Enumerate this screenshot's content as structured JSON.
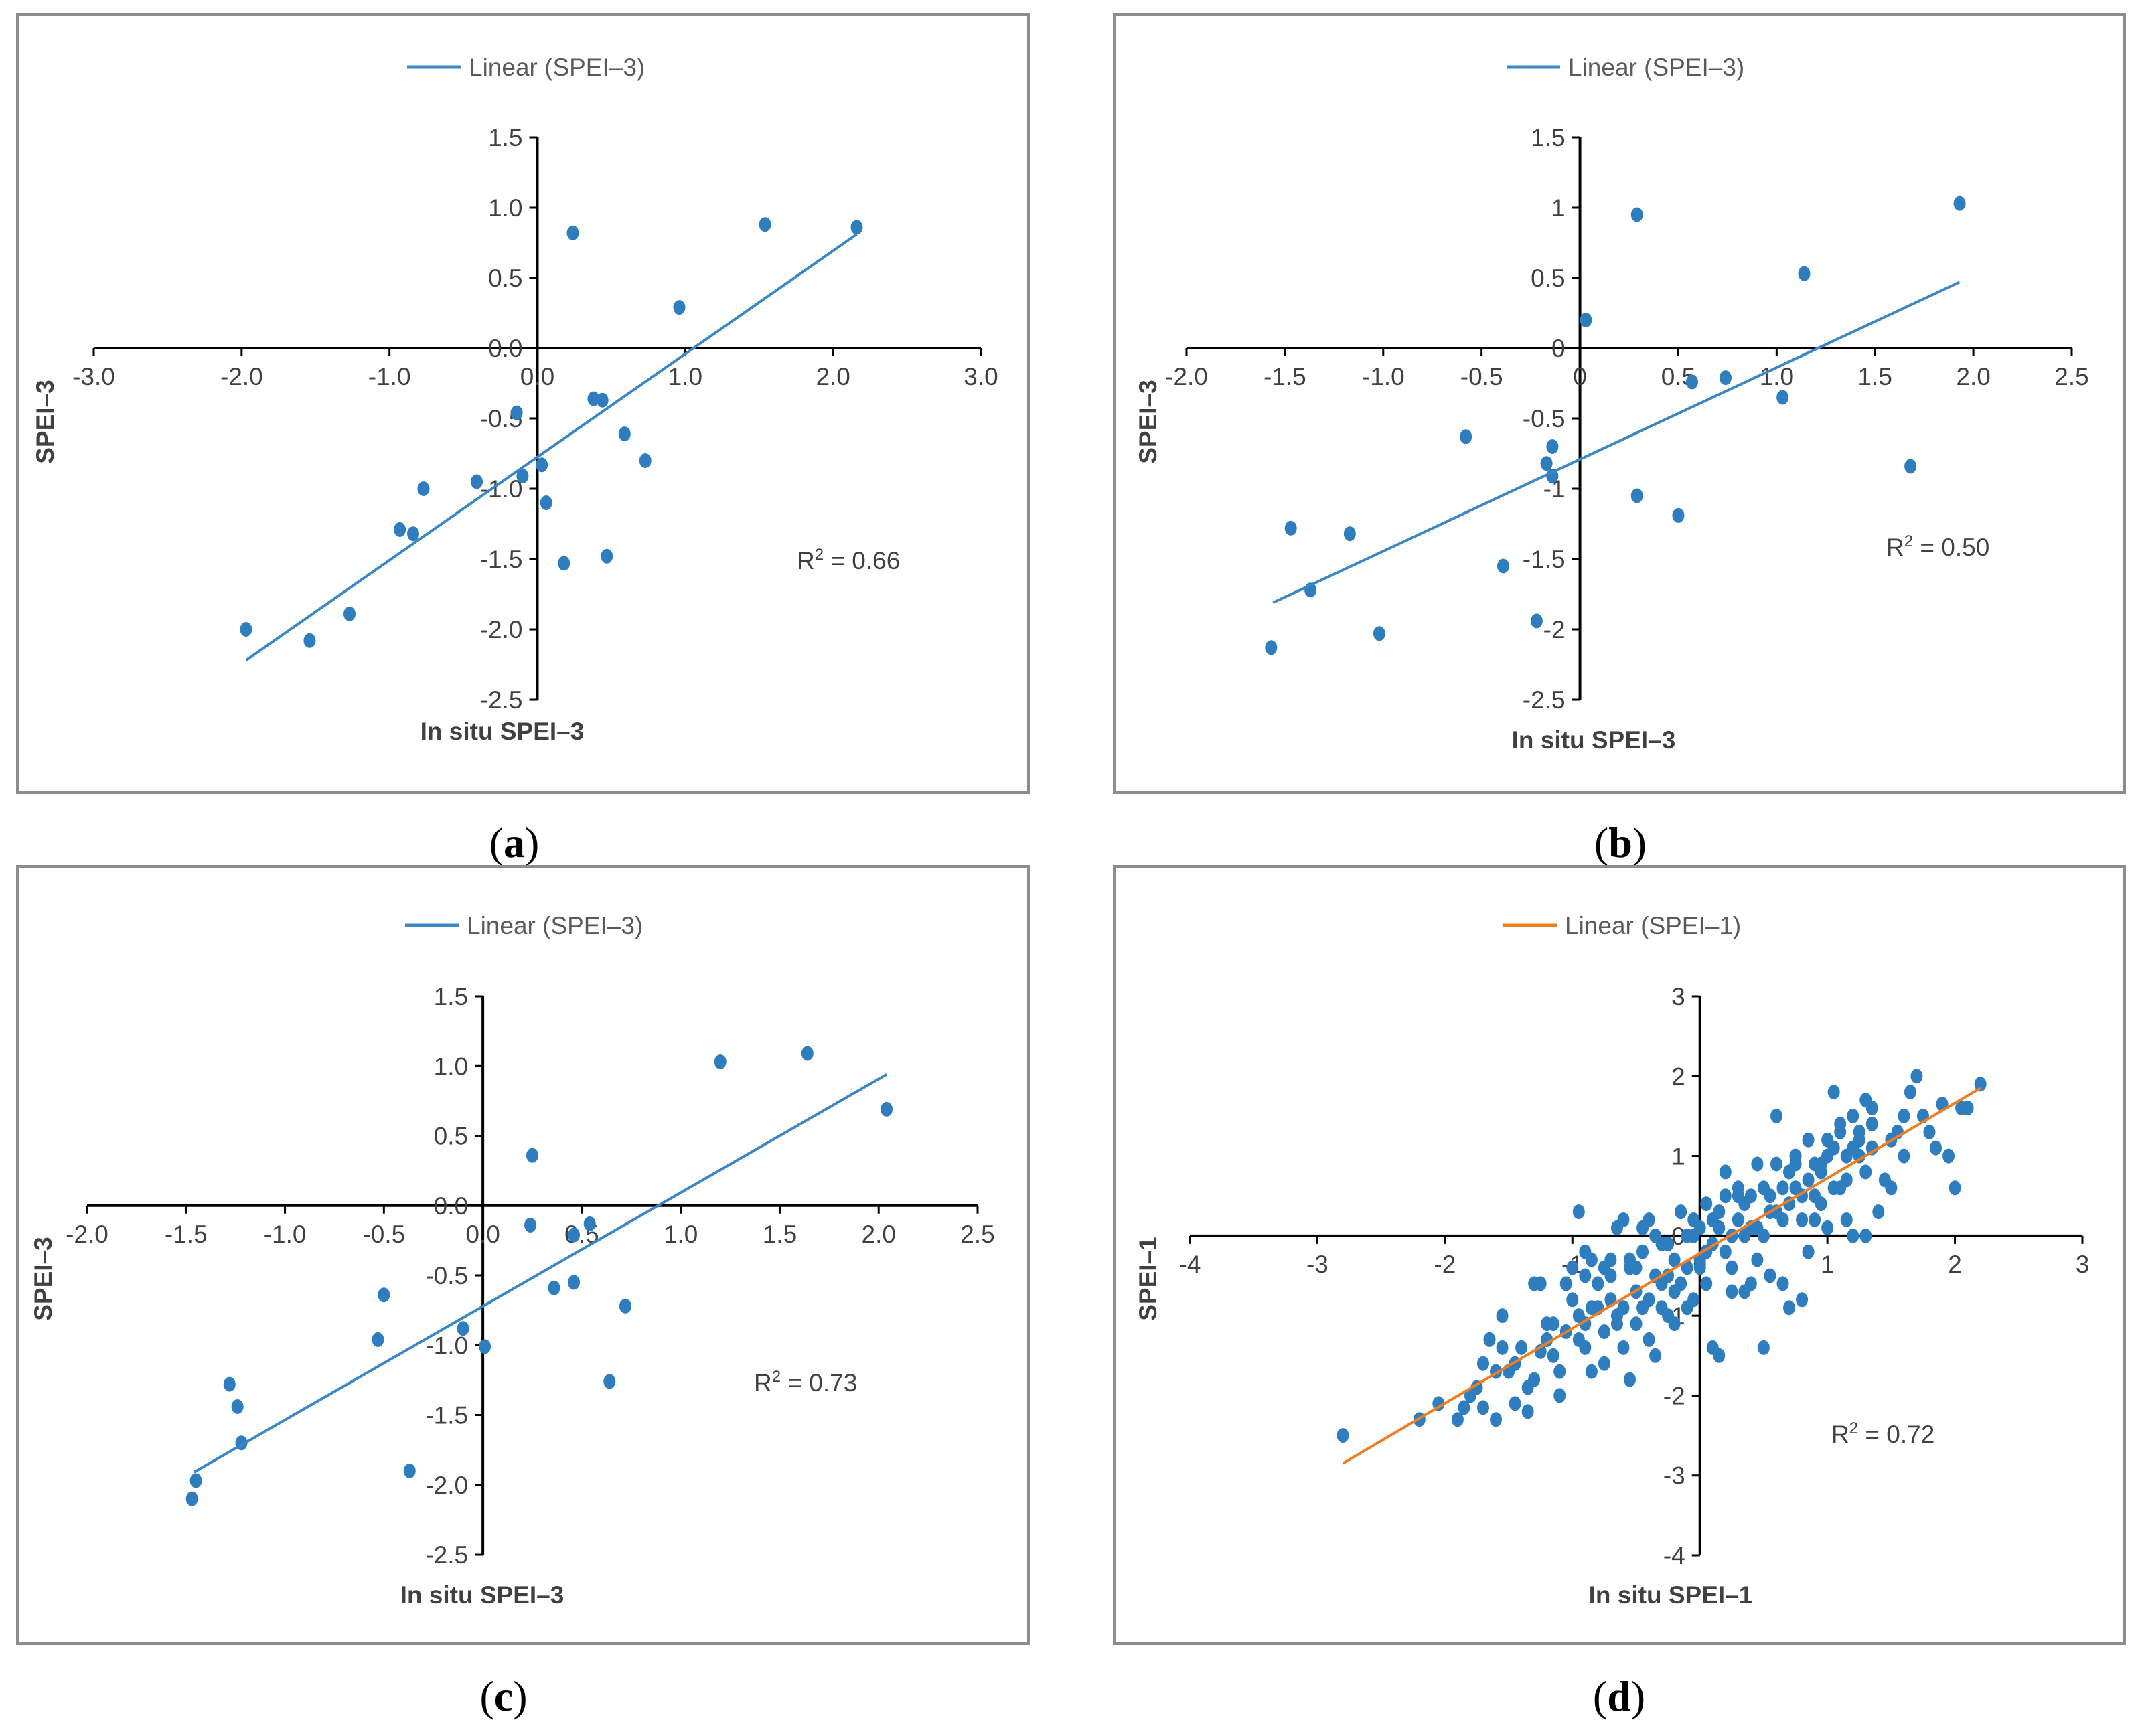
{
  "chart_data": [
    {
      "type": "scatter",
      "panel_label": "a",
      "legend": "Linear (SPEI–3)",
      "xlabel": "In situ SPEI–3",
      "ylabel": "SPEI–3",
      "xlim": [
        -3.0,
        3.0
      ],
      "ylim": [
        -2.5,
        1.5
      ],
      "xticks": [
        -3.0,
        -2.0,
        -1.0,
        0.0,
        1.0,
        2.0,
        3.0
      ],
      "yticks": [
        1.5,
        1.0,
        0.5,
        0.0,
        -0.5,
        -1.0,
        -1.5,
        -2.0,
        -2.5
      ],
      "xtick_labels": [
        "-3.0",
        "-2.0",
        "-1.0",
        "0.0",
        "1.0",
        "2.0",
        "3.0"
      ],
      "ytick_labels": [
        "1.5",
        "1.0",
        "0.5",
        "0.0",
        "-0.5",
        "-1.0",
        "-1.5",
        "-2.0",
        "-2.5"
      ],
      "r2_prefix": "R",
      "r2_sup": "2",
      "r2_value": " = 0.66",
      "point_color": "#2e7ebf",
      "line_color": "#3b87c6",
      "trendline": [
        [
          -1.97,
          -2.22
        ],
        [
          2.16,
          0.81
        ]
      ],
      "points": [
        [
          -1.97,
          -2.0
        ],
        [
          -1.54,
          -2.08
        ],
        [
          -1.27,
          -1.89
        ],
        [
          -0.93,
          -1.29
        ],
        [
          -0.84,
          -1.32
        ],
        [
          -0.77,
          -1.0
        ],
        [
          -0.41,
          -0.95
        ],
        [
          -0.14,
          -0.46
        ],
        [
          -0.1,
          -0.91
        ],
        [
          0.03,
          -0.83
        ],
        [
          0.06,
          -1.1
        ],
        [
          0.18,
          -1.53
        ],
        [
          0.24,
          0.82
        ],
        [
          0.38,
          -0.36
        ],
        [
          0.44,
          -0.37
        ],
        [
          0.47,
          -1.48
        ],
        [
          0.59,
          -0.61
        ],
        [
          0.73,
          -0.8
        ],
        [
          0.96,
          0.29
        ],
        [
          1.54,
          0.88
        ],
        [
          2.16,
          0.86
        ]
      ]
    },
    {
      "type": "scatter",
      "panel_label": "b",
      "legend": "Linear (SPEI–3)",
      "xlabel": "In situ SPEI–3",
      "ylabel": "SPEI–3",
      "xlim": [
        -2.0,
        2.5
      ],
      "ylim": [
        -2.5,
        1.5
      ],
      "xticks": [
        -2.0,
        -1.5,
        -1.0,
        -0.5,
        0.0,
        0.5,
        1.0,
        1.5,
        2.0,
        2.5
      ],
      "yticks": [
        1.5,
        1.0,
        0.5,
        0.0,
        -0.5,
        -1.0,
        -1.5,
        -2.0,
        -2.5
      ],
      "xtick_labels": [
        "-2.0",
        "-1.5",
        "-1.0",
        "-0.5",
        "0",
        "0.5",
        "1.0",
        "1.5",
        "2.0",
        "2.5"
      ],
      "ytick_labels": [
        "1.5",
        "1",
        "0.5",
        "0",
        "-0.5",
        "-1",
        "-1.5",
        "-2",
        "-2.5"
      ],
      "r2_prefix": "R",
      "r2_sup": "2",
      "r2_value": " = 0.50",
      "point_color": "#2e7ebf",
      "line_color": "#3b87c6",
      "trendline": [
        [
          -1.56,
          -1.81
        ],
        [
          1.93,
          0.47
        ]
      ],
      "points": [
        [
          -1.57,
          -2.13
        ],
        [
          -1.47,
          -1.28
        ],
        [
          -1.37,
          -1.72
        ],
        [
          -1.17,
          -1.32
        ],
        [
          -1.02,
          -2.03
        ],
        [
          -0.58,
          -0.63
        ],
        [
          -0.39,
          -1.55
        ],
        [
          -0.22,
          -1.94
        ],
        [
          -0.17,
          -0.82
        ],
        [
          -0.14,
          -0.7
        ],
        [
          -0.14,
          -0.91
        ],
        [
          0.03,
          0.2
        ],
        [
          0.29,
          0.95
        ],
        [
          0.29,
          -1.05
        ],
        [
          0.5,
          -1.19
        ],
        [
          0.57,
          -0.24
        ],
        [
          0.74,
          -0.21
        ],
        [
          1.03,
          -0.35
        ],
        [
          1.14,
          0.53
        ],
        [
          1.68,
          -0.84
        ],
        [
          1.93,
          1.03
        ]
      ]
    },
    {
      "type": "scatter",
      "panel_label": "c",
      "legend": "Linear (SPEI–3)",
      "xlabel": "In situ SPEI–3",
      "ylabel": "SPEI–3",
      "xlim": [
        -2.0,
        2.5
      ],
      "ylim": [
        -2.5,
        1.5
      ],
      "xticks": [
        -2.0,
        -1.5,
        -1.0,
        -0.5,
        0.0,
        0.5,
        1.0,
        1.5,
        2.0,
        2.5
      ],
      "yticks": [
        1.5,
        1.0,
        0.5,
        0.0,
        -0.5,
        -1.0,
        -1.5,
        -2.0,
        -2.5
      ],
      "xtick_labels": [
        "-2.0",
        "-1.5",
        "-1.0",
        "-0.5",
        "0.0",
        "0.5",
        "1.0",
        "1.5",
        "2.0",
        "2.5"
      ],
      "ytick_labels": [
        "1.5",
        "1.0",
        "0.5",
        "0.0",
        "-0.5",
        "-1.0",
        "-1.5",
        "-2.0",
        "-2.5"
      ],
      "r2_prefix": "R",
      "r2_sup": "2",
      "r2_value": " = 0.73",
      "point_color": "#2e7ebf",
      "line_color": "#3b87c6",
      "trendline": [
        [
          -1.46,
          -1.91
        ],
        [
          2.04,
          0.94
        ]
      ],
      "points": [
        [
          -1.47,
          -2.1
        ],
        [
          -1.45,
          -1.97
        ],
        [
          -1.28,
          -1.28
        ],
        [
          -1.24,
          -1.44
        ],
        [
          -1.22,
          -1.7
        ],
        [
          -0.53,
          -0.96
        ],
        [
          -0.5,
          -0.64
        ],
        [
          -0.37,
          -1.9
        ],
        [
          -0.1,
          -0.88
        ],
        [
          0.01,
          -1.01
        ],
        [
          0.24,
          -0.14
        ],
        [
          0.25,
          0.36
        ],
        [
          0.36,
          -0.59
        ],
        [
          0.46,
          -0.55
        ],
        [
          0.46,
          -0.21
        ],
        [
          0.54,
          -0.13
        ],
        [
          0.64,
          -1.26
        ],
        [
          0.72,
          -0.72
        ],
        [
          1.2,
          1.03
        ],
        [
          1.64,
          1.09
        ],
        [
          2.04,
          0.69
        ]
      ]
    },
    {
      "type": "scatter",
      "panel_label": "d",
      "legend": "Linear (SPEI–1)",
      "xlabel": "In situ SPEI–1",
      "ylabel": "SPEI–1",
      "xlim": [
        -4,
        3
      ],
      "ylim": [
        -4,
        3
      ],
      "xticks": [
        -4,
        -3,
        -2,
        -1,
        0,
        1,
        2,
        3
      ],
      "yticks": [
        3,
        2,
        1,
        0,
        -1,
        -2,
        -3,
        -4
      ],
      "xtick_labels": [
        "-4",
        "-3",
        "-2",
        "-1",
        "0",
        "1",
        "2",
        "3"
      ],
      "ytick_labels": [
        "3",
        "2",
        "1",
        "0",
        "-1",
        "-2",
        "-3",
        "-4"
      ],
      "r2_prefix": "R",
      "r2_sup": "2",
      "r2_value": " = 0.72",
      "point_color": "#2e7ebf",
      "line_color": "#ef7d22",
      "trendline": [
        [
          -2.8,
          -2.85
        ],
        [
          2.2,
          1.85
        ]
      ],
      "points": [
        [
          -2.8,
          -2.5
        ],
        [
          -2.2,
          -2.3
        ],
        [
          -1.85,
          -2.15
        ],
        [
          -1.8,
          -2.0
        ],
        [
          -1.7,
          -2.15
        ],
        [
          -1.65,
          -1.3
        ],
        [
          -1.6,
          -2.3
        ],
        [
          -1.55,
          -1.0
        ],
        [
          -1.5,
          -1.7
        ],
        [
          -1.45,
          -2.1
        ],
        [
          -1.4,
          -1.4
        ],
        [
          -1.35,
          -2.2
        ],
        [
          -1.3,
          -1.8
        ],
        [
          -1.25,
          -0.6
        ],
        [
          -1.2,
          -1.1
        ],
        [
          -1.15,
          -1.5
        ],
        [
          -1.1,
          -2.0
        ],
        [
          -1.05,
          -1.2
        ],
        [
          -1.0,
          -0.8
        ],
        [
          -0.95,
          0.3
        ],
        [
          -0.9,
          -1.4
        ],
        [
          -0.85,
          -0.3
        ],
        [
          -0.8,
          -0.9
        ],
        [
          -0.75,
          -1.6
        ],
        [
          -0.7,
          -0.5
        ],
        [
          -0.65,
          -1.1
        ],
        [
          -0.6,
          0.2
        ],
        [
          -0.55,
          -1.8
        ],
        [
          -0.5,
          -0.7
        ],
        [
          -0.45,
          -0.2
        ],
        [
          -0.4,
          -1.3
        ],
        [
          -0.35,
          0.0
        ],
        [
          -0.3,
          -0.6
        ],
        [
          -0.25,
          -1.0
        ],
        [
          -0.2,
          -0.3
        ],
        [
          -0.15,
          0.3
        ],
        [
          -0.1,
          -0.9
        ],
        [
          -0.05,
          0.2
        ],
        [
          0.0,
          -0.4
        ],
        [
          0.05,
          0.4
        ],
        [
          0.1,
          -1.4
        ],
        [
          0.15,
          0.1
        ],
        [
          0.2,
          -0.2
        ],
        [
          0.25,
          -0.7
        ],
        [
          0.3,
          0.6
        ],
        [
          0.35,
          0.0
        ],
        [
          0.4,
          -0.6
        ],
        [
          0.45,
          0.9
        ],
        [
          0.5,
          -1.4
        ],
        [
          0.55,
          0.3
        ],
        [
          0.6,
          1.5
        ],
        [
          0.65,
          0.6
        ],
        [
          0.7,
          -0.9
        ],
        [
          0.75,
          0.9
        ],
        [
          0.8,
          0.2
        ],
        [
          0.85,
          1.2
        ],
        [
          0.9,
          0.5
        ],
        [
          0.95,
          0.8
        ],
        [
          1.0,
          1.2
        ],
        [
          1.05,
          1.8
        ],
        [
          1.1,
          0.6
        ],
        [
          1.15,
          0.2
        ],
        [
          1.2,
          1.5
        ],
        [
          1.25,
          1.0
        ],
        [
          1.3,
          0.0
        ],
        [
          1.35,
          1.6
        ],
        [
          1.4,
          0.3
        ],
        [
          1.5,
          1.2
        ],
        [
          1.6,
          1.0
        ],
        [
          1.7,
          2.0
        ],
        [
          1.75,
          1.5
        ],
        [
          1.85,
          1.1
        ],
        [
          1.9,
          1.65
        ],
        [
          2.0,
          0.6
        ],
        [
          2.05,
          1.6
        ],
        [
          2.2,
          1.9
        ],
        [
          -1.9,
          -2.3
        ],
        [
          -1.7,
          -1.6
        ],
        [
          -1.55,
          -1.4
        ],
        [
          -1.35,
          -1.9
        ],
        [
          -1.2,
          -1.3
        ],
        [
          -1.1,
          -1.7
        ],
        [
          -1.0,
          -0.4
        ],
        [
          -0.95,
          -1.0
        ],
        [
          -0.9,
          -0.2
        ],
        [
          -0.85,
          -1.7
        ],
        [
          -0.8,
          -0.6
        ],
        [
          -0.75,
          -1.2
        ],
        [
          -0.7,
          -0.8
        ],
        [
          -0.65,
          0.1
        ],
        [
          -0.6,
          -1.4
        ],
        [
          -0.55,
          -0.4
        ],
        [
          -0.5,
          -1.1
        ],
        [
          -0.45,
          0.1
        ],
        [
          -0.4,
          -0.8
        ],
        [
          -0.35,
          -1.5
        ],
        [
          -0.3,
          -0.1
        ],
        [
          -0.25,
          -0.5
        ],
        [
          -0.2,
          -1.1
        ],
        [
          -0.15,
          0.3
        ],
        [
          -0.1,
          -0.4
        ],
        [
          -0.05,
          -0.8
        ],
        [
          0.0,
          0.1
        ],
        [
          0.05,
          -0.6
        ],
        [
          0.1,
          0.2
        ],
        [
          0.15,
          -1.5
        ],
        [
          0.2,
          0.5
        ],
        [
          0.25,
          -0.4
        ],
        [
          0.3,
          0.2
        ],
        [
          0.35,
          -0.7
        ],
        [
          0.4,
          0.1
        ],
        [
          0.45,
          -0.3
        ],
        [
          0.5,
          0.6
        ],
        [
          0.55,
          -0.5
        ],
        [
          0.6,
          0.3
        ],
        [
          0.65,
          -0.6
        ],
        [
          0.7,
          0.4
        ],
        [
          0.75,
          1.0
        ],
        [
          0.8,
          0.5
        ],
        [
          0.85,
          -0.2
        ],
        [
          0.9,
          0.9
        ],
        [
          0.95,
          0.4
        ],
        [
          1.0,
          1.0
        ],
        [
          1.05,
          0.6
        ],
        [
          1.1,
          1.4
        ],
        [
          1.15,
          0.7
        ],
        [
          1.2,
          0.0
        ],
        [
          1.25,
          1.3
        ],
        [
          1.3,
          0.8
        ],
        [
          1.35,
          1.1
        ],
        [
          1.45,
          0.7
        ],
        [
          1.55,
          1.3
        ],
        [
          1.65,
          1.8
        ],
        [
          1.8,
          1.3
        ],
        [
          1.95,
          1.0
        ],
        [
          2.1,
          1.6
        ],
        [
          -2.05,
          -2.1
        ],
        [
          -1.75,
          -1.9
        ],
        [
          -1.45,
          -1.6
        ],
        [
          -1.15,
          -1.1
        ],
        [
          -1.05,
          -0.6
        ],
        [
          -0.95,
          -1.3
        ],
        [
          -0.85,
          -0.9
        ],
        [
          -0.75,
          -0.4
        ],
        [
          -0.65,
          -1.0
        ],
        [
          -0.55,
          -0.3
        ],
        [
          -0.45,
          -0.9
        ],
        [
          -0.35,
          -0.5
        ],
        [
          -0.25,
          -0.1
        ],
        [
          -0.15,
          -0.6
        ],
        [
          -0.05,
          0.0
        ],
        [
          0.05,
          -0.2
        ],
        [
          0.15,
          0.3
        ],
        [
          0.25,
          0.0
        ],
        [
          0.35,
          0.4
        ],
        [
          0.45,
          0.1
        ],
        [
          0.55,
          0.5
        ],
        [
          0.65,
          0.2
        ],
        [
          0.75,
          0.6
        ],
        [
          0.85,
          0.7
        ],
        [
          0.95,
          0.9
        ],
        [
          1.05,
          1.1
        ],
        [
          1.15,
          1.0
        ],
        [
          1.25,
          1.2
        ],
        [
          1.35,
          1.4
        ],
        [
          1.6,
          1.5
        ],
        [
          -1.6,
          -1.7
        ],
        [
          -1.25,
          -1.45
        ],
        [
          -0.9,
          -1.1
        ],
        [
          -0.7,
          -0.3
        ],
        [
          -0.5,
          -0.4
        ],
        [
          -0.3,
          -0.9
        ],
        [
          -0.1,
          0.0
        ],
        [
          0.1,
          -0.1
        ],
        [
          0.3,
          0.5
        ],
        [
          0.5,
          0.0
        ],
        [
          0.7,
          0.8
        ],
        [
          0.9,
          0.2
        ],
        [
          1.1,
          1.3
        ],
        [
          1.3,
          1.7
        ],
        [
          1.5,
          0.6
        ],
        [
          -1.3,
          -0.6
        ],
        [
          -0.9,
          -0.5
        ],
        [
          -0.6,
          -0.9
        ],
        [
          -0.4,
          0.2
        ],
        [
          -0.2,
          -0.7
        ],
        [
          0.0,
          -0.3
        ],
        [
          0.2,
          0.8
        ],
        [
          0.4,
          0.5
        ],
        [
          0.6,
          0.9
        ],
        [
          0.8,
          -0.8
        ],
        [
          1.0,
          0.1
        ],
        [
          1.2,
          1.1
        ]
      ]
    }
  ]
}
